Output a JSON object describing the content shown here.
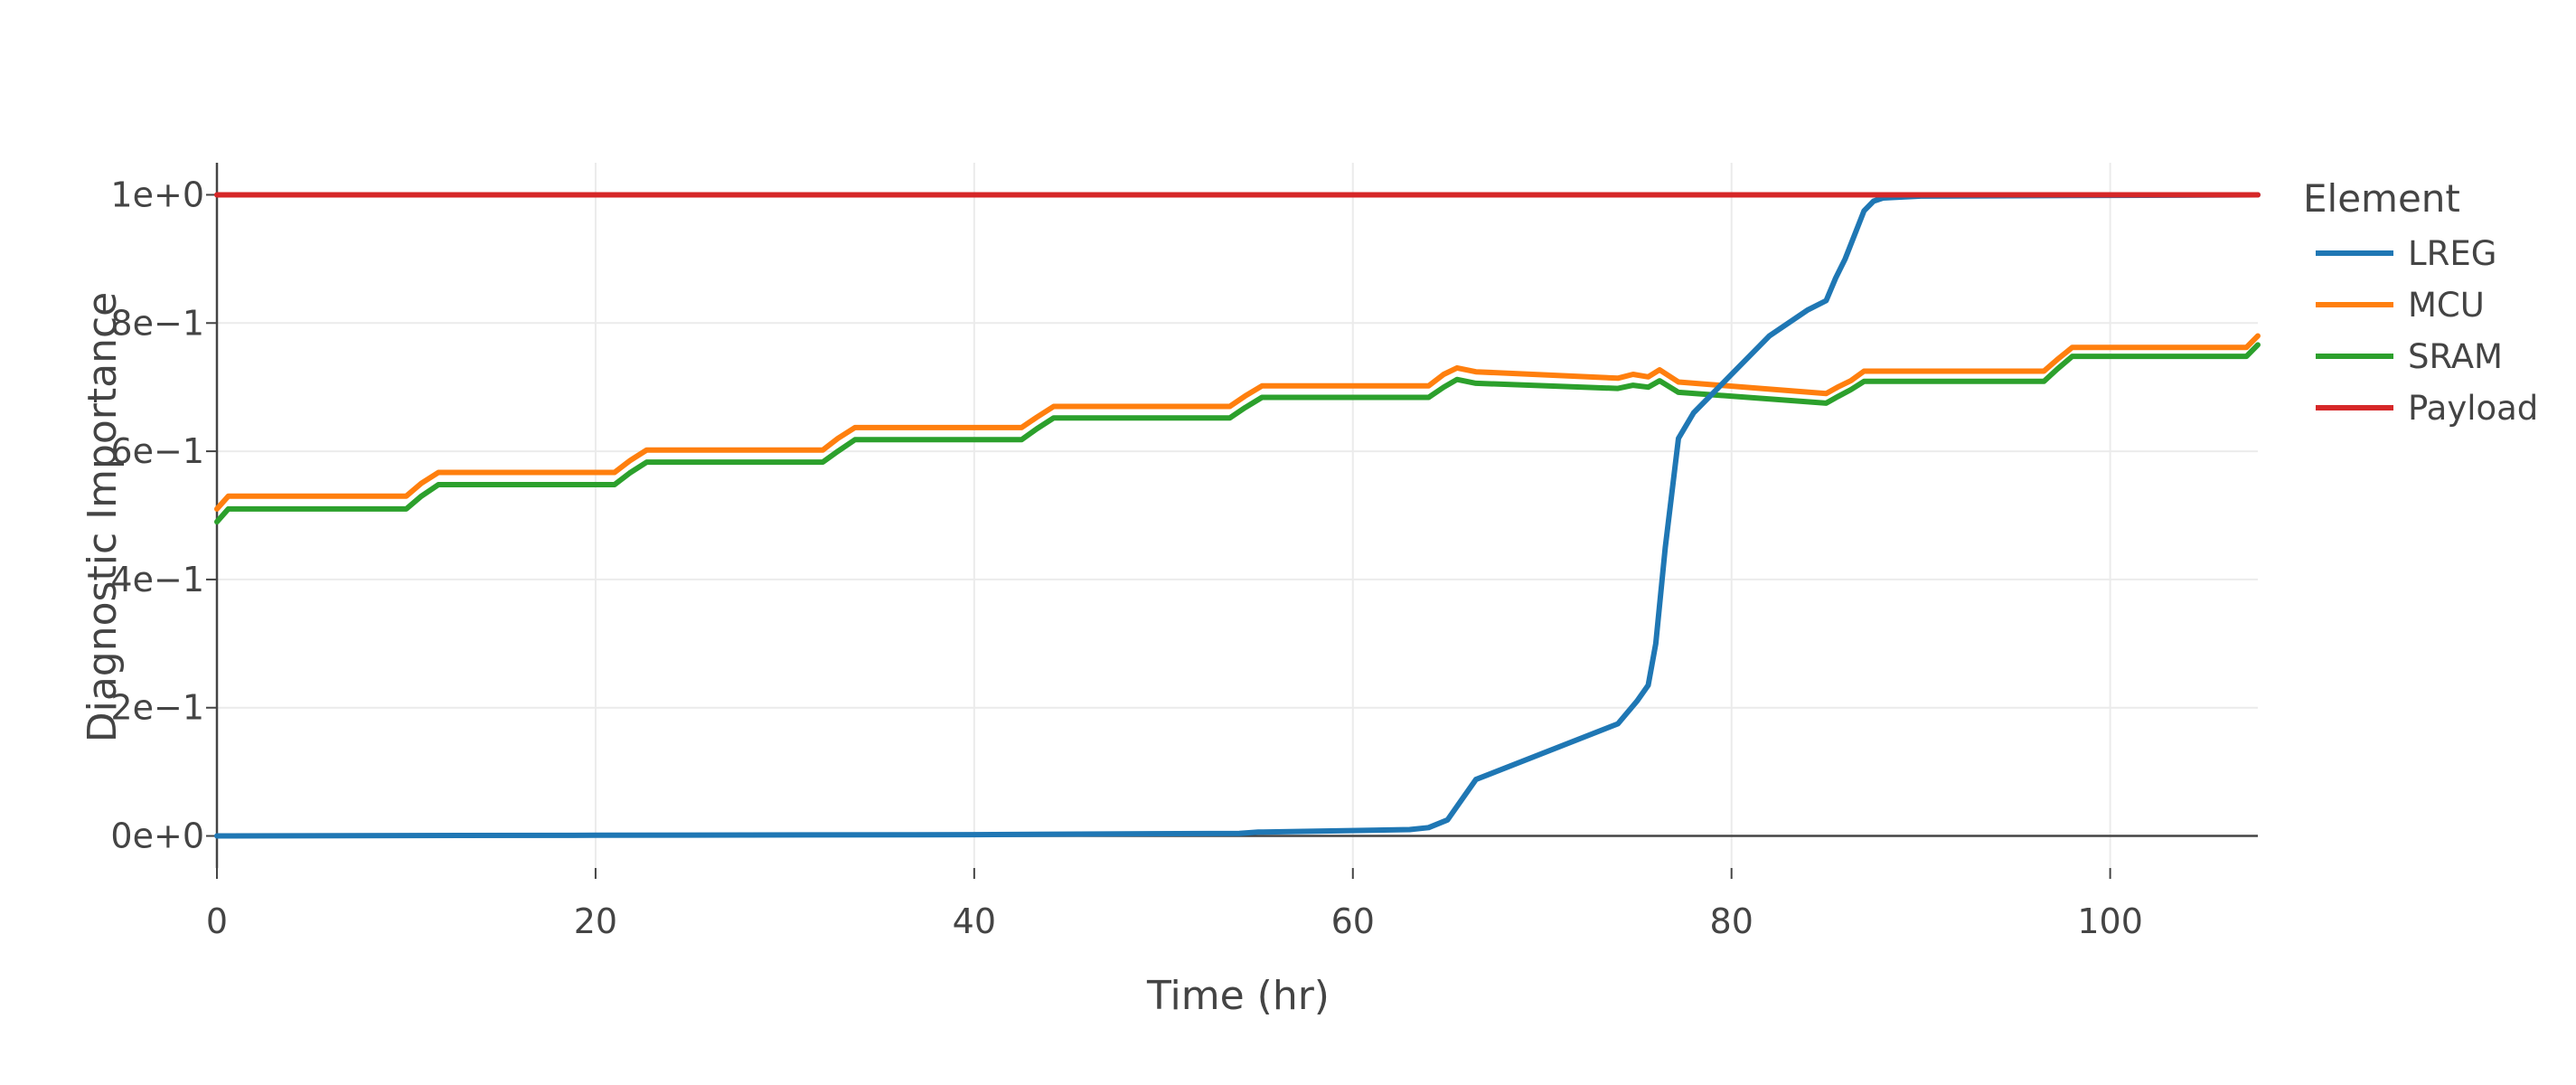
{
  "chart_data": {
    "type": "line",
    "xlabel": "Time (hr)",
    "ylabel": "Diagnostic Importance",
    "xlim": [
      0,
      107.8
    ],
    "ylim": [
      -0.05,
      1.05
    ],
    "x_ticks": [
      0,
      20,
      40,
      60,
      80,
      100
    ],
    "x_tick_labels": [
      "0",
      "20",
      "40",
      "60",
      "80",
      "100"
    ],
    "y_ticks": [
      0,
      0.2,
      0.4,
      0.6,
      0.8,
      1.0
    ],
    "y_tick_labels": [
      "0e+0",
      "2e−1",
      "4e−1",
      "6e−1",
      "8e−1",
      "1e+0"
    ],
    "grid": true,
    "legend": {
      "title": "Element",
      "placement": "right"
    },
    "series": [
      {
        "name": "LREG",
        "color": "#1f77b4",
        "x": [
          0,
          20,
          40,
          54,
          55,
          63,
          64,
          65,
          66.5,
          74,
          75,
          75.6,
          76,
          76.5,
          77.2,
          78,
          80,
          82,
          84,
          85,
          85.5,
          86,
          87,
          87.5,
          88,
          90,
          107.8
        ],
        "y": [
          0,
          0.001,
          0.002,
          0.004,
          0.006,
          0.01,
          0.013,
          0.025,
          0.088,
          0.175,
          0.21,
          0.235,
          0.3,
          0.45,
          0.62,
          0.66,
          0.72,
          0.78,
          0.82,
          0.835,
          0.87,
          0.9,
          0.975,
          0.99,
          0.995,
          0.998,
          1.0
        ]
      },
      {
        "name": "MCU",
        "color": "#ff7f0e",
        "x": [
          0,
          0.6,
          10,
          10.8,
          11.7,
          21,
          21.8,
          22.7,
          32,
          32.8,
          33.7,
          42.5,
          43.3,
          44.2,
          53.5,
          54.3,
          55.2,
          64,
          64.8,
          65.5,
          66.5,
          74,
          74.8,
          75.6,
          76.2,
          77.2,
          85,
          85.6,
          86.3,
          87,
          96.5,
          97.2,
          98,
          107.2,
          107.8
        ],
        "y": [
          0.51,
          0.53,
          0.53,
          0.55,
          0.567,
          0.567,
          0.585,
          0.602,
          0.602,
          0.62,
          0.637,
          0.637,
          0.653,
          0.67,
          0.67,
          0.686,
          0.702,
          0.702,
          0.72,
          0.73,
          0.724,
          0.714,
          0.72,
          0.716,
          0.727,
          0.708,
          0.69,
          0.7,
          0.71,
          0.725,
          0.725,
          0.743,
          0.762,
          0.762,
          0.78
        ]
      },
      {
        "name": "SRAM",
        "color": "#2ca02c",
        "x": [
          0,
          0.6,
          10,
          10.8,
          11.7,
          21,
          21.8,
          22.7,
          32,
          32.8,
          33.7,
          42.5,
          43.3,
          44.2,
          53.5,
          54.3,
          55.2,
          64,
          64.8,
          65.5,
          66.5,
          74,
          74.8,
          75.6,
          76.2,
          77.2,
          85,
          85.6,
          86.3,
          87,
          96.5,
          97.2,
          98,
          107.2,
          107.8
        ],
        "y": [
          0.49,
          0.51,
          0.51,
          0.53,
          0.548,
          0.548,
          0.566,
          0.583,
          0.583,
          0.6,
          0.618,
          0.618,
          0.635,
          0.652,
          0.652,
          0.668,
          0.684,
          0.684,
          0.7,
          0.712,
          0.706,
          0.698,
          0.703,
          0.7,
          0.71,
          0.692,
          0.675,
          0.685,
          0.696,
          0.709,
          0.709,
          0.728,
          0.748,
          0.748,
          0.766
        ]
      },
      {
        "name": "Payload",
        "color": "#d62728",
        "x": [
          0,
          107.8
        ],
        "y": [
          1.0,
          1.0
        ]
      }
    ]
  }
}
